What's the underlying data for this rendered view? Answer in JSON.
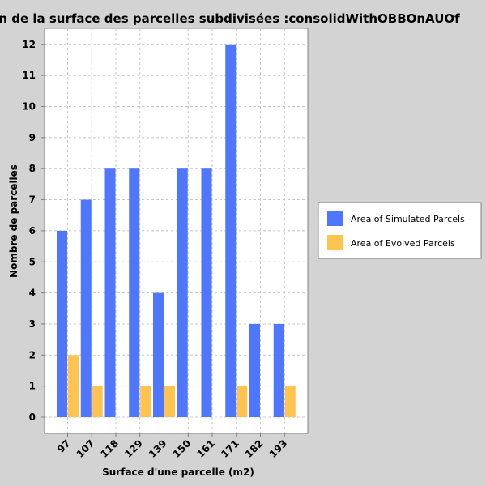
{
  "chart_data": {
    "type": "bar",
    "title": "n de la surface des parcelles subdivisées :consolidWithOBBOnAUOf",
    "xlabel": "Surface d'une parcelle (m2)",
    "ylabel": "Nombre de parcelles",
    "categories": [
      "97",
      "107",
      "118",
      "129",
      "139",
      "150",
      "161",
      "171",
      "182",
      "193"
    ],
    "ylim": [
      -0.5,
      12.5
    ],
    "yticks": [
      0,
      1,
      2,
      3,
      4,
      5,
      6,
      7,
      8,
      9,
      10,
      11,
      12
    ],
    "grid": true,
    "legend_position": "right",
    "series": [
      {
        "name": "Area of Simulated Parcels",
        "color": "#4f76ff",
        "values": [
          6,
          7,
          8,
          8,
          4,
          8,
          8,
          12,
          3,
          3
        ]
      },
      {
        "name": "Area of Evolved Parcels",
        "color": "#ffc34f",
        "values": [
          2,
          1,
          0,
          1,
          1,
          0,
          0,
          1,
          0,
          1
        ]
      }
    ]
  }
}
